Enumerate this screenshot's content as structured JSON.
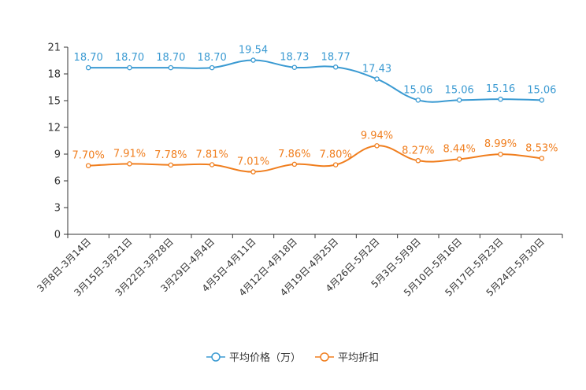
{
  "chart_data": {
    "type": "line",
    "categories": [
      "3月8日-3月14日",
      "3月15日-3月21日",
      "3月22日-3月28日",
      "3月29日-4月4日",
      "4月5日-4月11日",
      "4月12日-4月18日",
      "4月19日-4月25日",
      "4月26日-5月2日",
      "5月3日-5月9日",
      "5月10日-5月16日",
      "5月17日-5月23日",
      "5月24日-5月30日"
    ],
    "series": [
      {
        "name": "平均价格（万）",
        "color": "#3a9ad2",
        "values": [
          18.7,
          18.7,
          18.7,
          18.7,
          19.54,
          18.73,
          18.77,
          17.43,
          15.06,
          15.06,
          15.16,
          15.06
        ],
        "labels": [
          "18.70",
          "18.70",
          "18.70",
          "18.70",
          "19.54",
          "18.73",
          "18.77",
          "17.43",
          "15.06",
          "15.06",
          "15.16",
          "15.06"
        ]
      },
      {
        "name": "平均折扣",
        "color": "#f07e1e",
        "values": [
          7.7,
          7.91,
          7.78,
          7.81,
          7.01,
          7.86,
          7.8,
          9.94,
          8.27,
          8.44,
          8.99,
          8.53
        ],
        "labels": [
          "7.70%",
          "7.91%",
          "7.78%",
          "7.81%",
          "7.01%",
          "7.86%",
          "7.80%",
          "9.94%",
          "8.27%",
          "8.44%",
          "8.99%",
          "8.53%"
        ]
      }
    ],
    "y_ticks": [
      "0",
      "3",
      "6",
      "9",
      "12",
      "15",
      "18",
      "21"
    ],
    "ylim": [
      0,
      21
    ],
    "title": "",
    "xlabel": "",
    "ylabel": "",
    "legend_position": "bottom"
  }
}
